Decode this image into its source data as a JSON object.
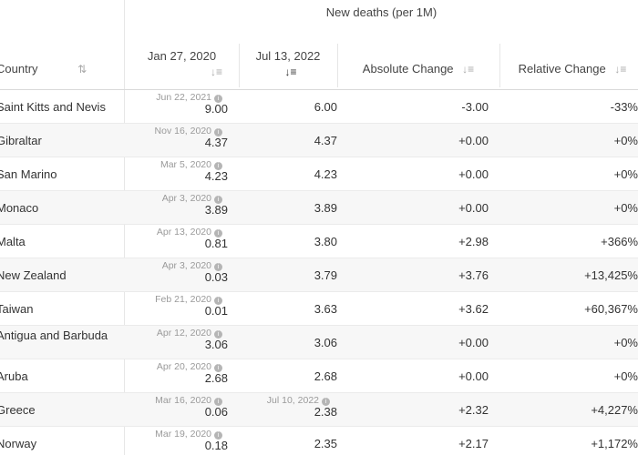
{
  "header": {
    "group_title": "New deaths (per 1M)",
    "columns": {
      "country": "Country",
      "start": "Jan 27, 2020",
      "end": "Jul 13, 2022",
      "abs": "Absolute Change",
      "rel": "Relative Change"
    },
    "sort_icons": {
      "country": "↓⇅",
      "start": "↓≡",
      "end": "↓≡",
      "abs": "↓≡",
      "rel": "↓≡"
    }
  },
  "rows": [
    {
      "country": "Saint Kitts and Nevis",
      "start_date": "Jun 22, 2021",
      "start": "9.00",
      "end_date": "",
      "end": "6.00",
      "abs": "-3.00",
      "rel": "-33%"
    },
    {
      "country": "Gibraltar",
      "start_date": "Nov 16, 2020",
      "start": "4.37",
      "end_date": "",
      "end": "4.37",
      "abs": "+0.00",
      "rel": "+0%"
    },
    {
      "country": "San Marino",
      "start_date": "Mar 5, 2020",
      "start": "4.23",
      "end_date": "",
      "end": "4.23",
      "abs": "+0.00",
      "rel": "+0%"
    },
    {
      "country": "Monaco",
      "start_date": "Apr 3, 2020",
      "start": "3.89",
      "end_date": "",
      "end": "3.89",
      "abs": "+0.00",
      "rel": "+0%"
    },
    {
      "country": "Malta",
      "start_date": "Apr 13, 2020",
      "start": "0.81",
      "end_date": "",
      "end": "3.80",
      "abs": "+2.98",
      "rel": "+366%"
    },
    {
      "country": "New Zealand",
      "start_date": "Apr 3, 2020",
      "start": "0.03",
      "end_date": "",
      "end": "3.79",
      "abs": "+3.76",
      "rel": "+13,425%"
    },
    {
      "country": "Taiwan",
      "start_date": "Feb 21, 2020",
      "start": "0.01",
      "end_date": "",
      "end": "3.63",
      "abs": "+3.62",
      "rel": "+60,367%"
    },
    {
      "country": "Antigua and Barbuda",
      "start_date": "Apr 12, 2020",
      "start": "3.06",
      "end_date": "",
      "end": "3.06",
      "abs": "+0.00",
      "rel": "+0%"
    },
    {
      "country": "Aruba",
      "start_date": "Apr 20, 2020",
      "start": "2.68",
      "end_date": "",
      "end": "2.68",
      "abs": "+0.00",
      "rel": "+0%"
    },
    {
      "country": "Greece",
      "start_date": "Mar 16, 2020",
      "start": "0.06",
      "end_date": "Jul 10, 2022",
      "end": "2.38",
      "abs": "+2.32",
      "rel": "+4,227%"
    },
    {
      "country": "Norway",
      "start_date": "Mar 19, 2020",
      "start": "0.18",
      "end_date": "",
      "end": "2.35",
      "abs": "+2.17",
      "rel": "+1,172%"
    }
  ]
}
